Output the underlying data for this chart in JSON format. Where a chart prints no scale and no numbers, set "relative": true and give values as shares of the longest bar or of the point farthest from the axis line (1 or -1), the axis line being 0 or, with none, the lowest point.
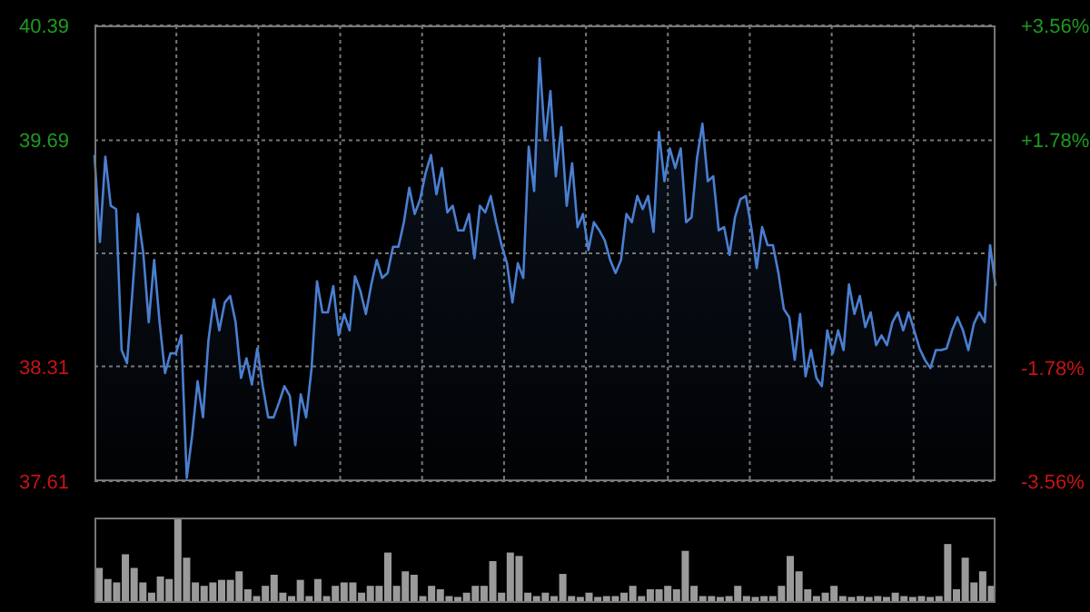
{
  "chart_data": [
    {
      "type": "area",
      "categories": [
        null,
        null,
        null,
        null,
        null,
        null,
        null,
        null,
        null,
        null,
        null,
        null,
        null,
        null,
        null,
        null,
        null,
        null,
        null,
        null,
        null,
        null,
        null,
        null,
        null,
        null,
        null,
        null,
        null,
        null,
        null,
        null,
        null,
        null,
        null,
        null,
        null,
        null,
        null,
        null,
        null,
        null,
        null,
        null,
        null,
        null,
        null,
        null,
        null,
        null,
        null,
        null,
        null,
        null,
        null,
        null,
        null,
        null,
        null,
        null,
        null,
        null,
        null,
        null,
        null,
        null,
        null,
        null,
        null,
        null,
        null,
        null,
        null,
        null,
        null,
        null,
        null,
        null,
        null,
        null,
        null,
        null,
        null,
        null,
        null,
        null,
        null,
        null,
        null,
        null,
        null,
        null,
        null,
        null,
        null,
        null,
        null,
        null,
        null,
        null,
        null,
        null,
        null,
        null,
        null,
        null,
        null,
        null,
        null,
        null,
        null,
        null,
        null,
        null,
        null,
        null,
        null,
        null,
        null,
        null,
        null,
        null,
        null,
        null,
        null,
        null,
        null,
        null,
        null,
        null,
        null,
        null,
        null,
        null,
        null,
        null,
        null,
        null,
        null,
        null,
        null,
        null,
        null,
        null,
        null,
        null,
        null,
        null,
        null,
        null,
        null,
        null,
        null,
        null,
        null,
        null,
        null,
        null,
        null,
        null,
        null,
        null,
        null,
        null,
        null,
        null,
        null
      ],
      "series": [
        {
          "color": "#4a7fd0",
          "values": [
            39.6,
            39.07,
            39.59,
            39.29,
            39.27,
            38.41,
            38.33,
            38.77,
            39.24,
            39.0,
            38.58,
            38.96,
            38.58,
            38.27,
            38.39,
            38.39,
            38.5,
            37.63,
            37.89,
            38.22,
            38.0,
            38.47,
            38.72,
            38.53,
            38.7,
            38.74,
            38.58,
            38.24,
            38.36,
            38.2,
            38.42,
            38.19,
            38.0,
            38.0,
            38.09,
            38.19,
            38.13,
            37.83,
            38.14,
            38.0,
            38.3,
            38.83,
            38.64,
            38.64,
            38.8,
            38.5,
            38.63,
            38.53,
            38.86,
            38.77,
            38.63,
            38.81,
            38.96,
            38.85,
            38.88,
            39.04,
            39.04,
            39.19,
            39.4,
            39.24,
            39.33,
            39.49,
            39.6,
            39.36,
            39.52,
            39.25,
            39.29,
            39.14,
            39.14,
            39.24,
            38.97,
            39.29,
            39.25,
            39.35,
            39.19,
            39.05,
            38.94,
            38.7,
            38.94,
            38.85,
            39.65,
            39.38,
            40.19,
            39.69,
            39.99,
            39.47,
            39.77,
            39.29,
            39.55,
            39.16,
            39.24,
            39.02,
            39.19,
            39.14,
            39.08,
            38.96,
            38.88,
            38.96,
            39.24,
            39.19,
            39.35,
            39.27,
            39.35,
            39.13,
            39.74,
            39.44,
            39.64,
            39.52,
            39.64,
            39.19,
            39.22,
            39.58,
            39.79,
            39.44,
            39.47,
            39.14,
            39.16,
            38.99,
            39.22,
            39.33,
            39.35,
            39.16,
            38.91,
            39.16,
            39.05,
            39.05,
            38.88,
            38.66,
            38.61,
            38.35,
            38.63,
            38.25,
            38.41,
            38.24,
            38.19,
            38.53,
            38.39,
            38.53,
            38.41,
            38.81,
            38.63,
            38.74,
            38.55,
            38.64,
            38.44,
            38.5,
            38.44,
            38.58,
            38.64,
            38.53,
            38.64,
            38.53,
            38.42,
            38.35,
            38.3,
            38.41,
            38.41,
            38.42,
            38.53,
            38.61,
            38.53,
            38.41,
            38.57,
            38.64,
            38.58,
            39.05,
            38.8
          ]
        }
      ],
      "ylim": [
        37.61,
        40.39
      ],
      "yticks": [
        37.61,
        38.31,
        {
          "value": 39.0,
          "label": null
        },
        39.69,
        40.39
      ],
      "y2lim": [
        -3.56,
        3.56
      ],
      "y2ticks": [
        {
          "value": -3.56,
          "label": "-3.56%"
        },
        {
          "value": -1.78,
          "label": "-1.78%"
        },
        {
          "value": 0,
          "label": null
        },
        {
          "value": 1.78,
          "label": "+1.78%"
        },
        {
          "value": 3.56,
          "label": "+3.56%"
        }
      ],
      "tick_labels": "y",
      "grid": true,
      "legend": false
    },
    {
      "type": "bar",
      "relative": true,
      "categories": [
        null,
        null,
        null,
        null,
        null,
        null,
        null,
        null,
        null,
        null,
        null,
        null,
        null,
        null,
        null,
        null,
        null,
        null,
        null,
        null,
        null,
        null,
        null,
        null,
        null,
        null,
        null,
        null,
        null,
        null,
        null,
        null,
        null,
        null,
        null,
        null,
        null,
        null,
        null,
        null,
        null,
        null,
        null,
        null,
        null,
        null,
        null,
        null,
        null,
        null,
        null,
        null,
        null,
        null,
        null,
        null,
        null,
        null,
        null,
        null,
        null,
        null,
        null,
        null,
        null,
        null,
        null,
        null,
        null,
        null,
        null,
        null,
        null,
        null,
        null,
        null,
        null,
        null,
        null,
        null,
        null,
        null,
        null,
        null,
        null,
        null,
        null,
        null,
        null,
        null,
        null,
        null,
        null,
        null,
        null,
        null,
        null,
        null,
        null,
        null,
        null,
        null,
        null
      ],
      "series": [
        {
          "color": "#9a9a9a",
          "values": [
            0.41,
            0.28,
            0.24,
            0.57,
            0.41,
            0.24,
            0.12,
            0.31,
            0.28,
            1.0,
            0.53,
            0.24,
            0.2,
            0.24,
            0.27,
            0.27,
            0.37,
            0.16,
            0.08,
            0.2,
            0.33,
            0.12,
            0.08,
            0.27,
            0.08,
            0.28,
            0.08,
            0.2,
            0.24,
            0.24,
            0.12,
            0.2,
            0.2,
            0.59,
            0.2,
            0.37,
            0.33,
            0.08,
            0.2,
            0.16,
            0.08,
            0.07,
            0.12,
            0.2,
            0.2,
            0.49,
            0.12,
            0.59,
            0.55,
            0.12,
            0.08,
            0.12,
            0.08,
            0.34,
            0.08,
            0.07,
            0.12,
            0.07,
            0.08,
            0.08,
            0.12,
            0.2,
            0.08,
            0.16,
            0.16,
            0.2,
            0.16,
            0.61,
            0.2,
            0.08,
            0.08,
            0.07,
            0.08,
            0.2,
            0.08,
            0.07,
            0.08,
            0.08,
            0.2,
            0.55,
            0.37,
            0.16,
            0.08,
            0.12,
            0.2,
            0.08,
            0.07,
            0.08,
            0.07,
            0.08,
            0.07,
            0.12,
            0.08,
            0.07,
            0.08,
            0.07,
            0.08,
            0.69,
            0.16,
            0.53,
            0.24,
            0.37,
            0.2
          ]
        }
      ],
      "legend": false
    }
  ]
}
